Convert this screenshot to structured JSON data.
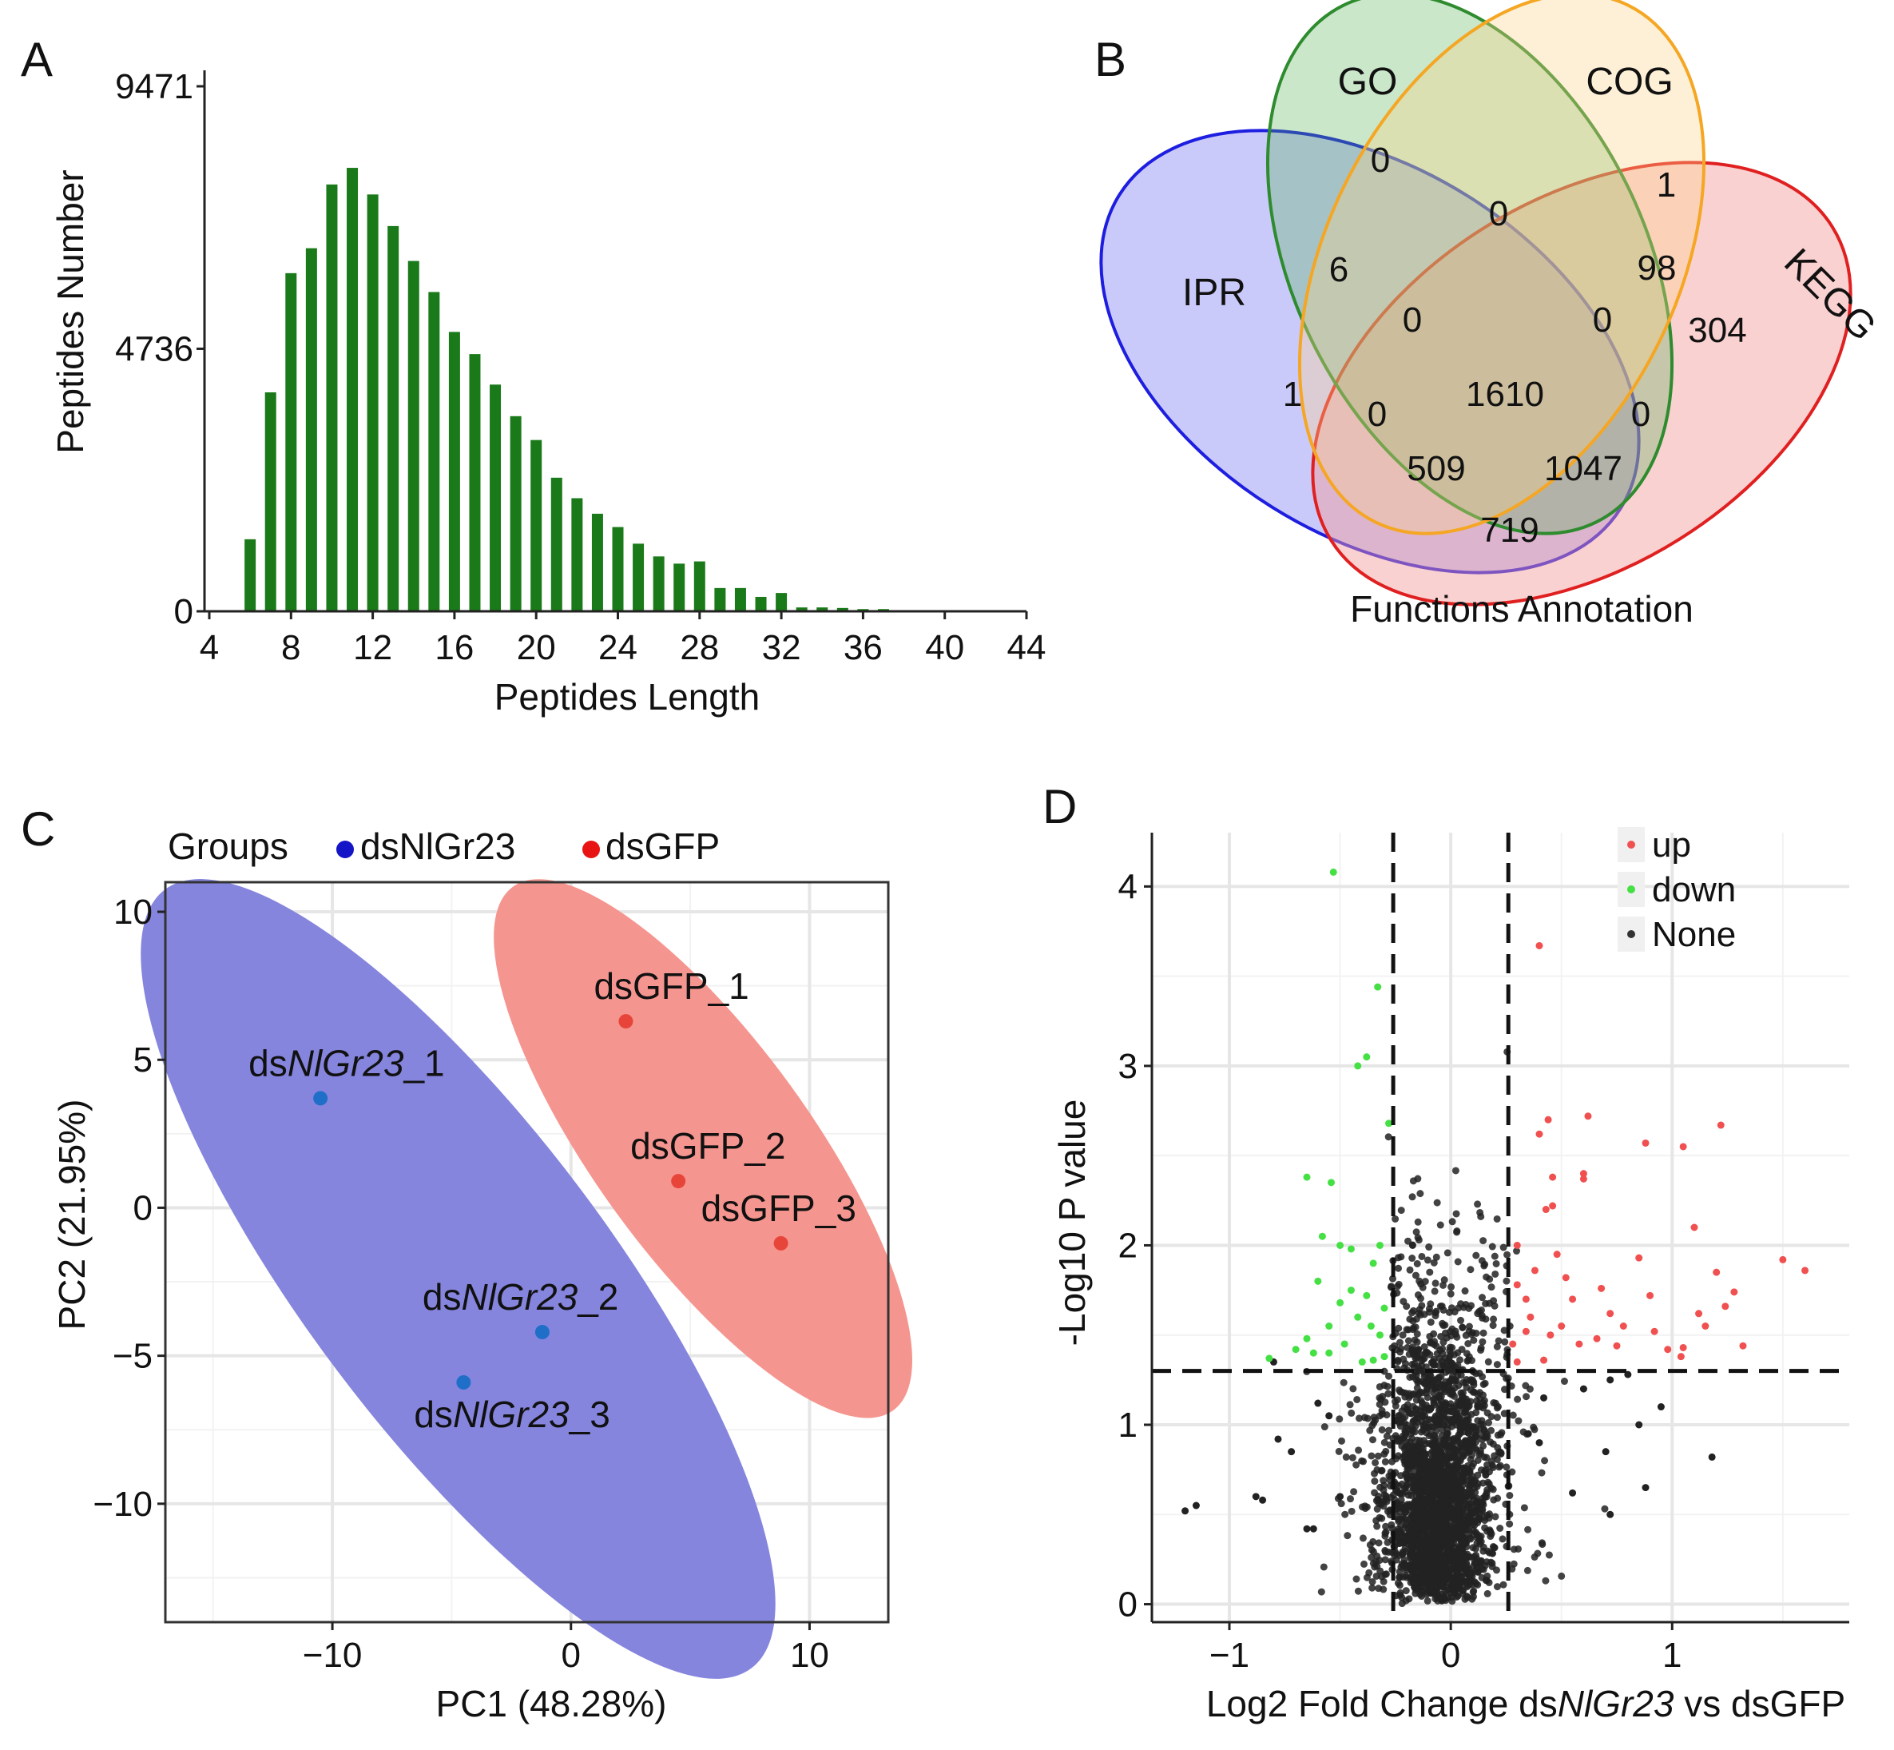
{
  "panels": {
    "A": {
      "label": "A"
    },
    "B": {
      "label": "B"
    },
    "C": {
      "label": "C"
    },
    "D": {
      "label": "D"
    }
  },
  "chart_data": [
    {
      "id": "A",
      "type": "bar",
      "xlabel": "Peptides Length",
      "ylabel": "Peptides Number",
      "color": "#1a7a1a",
      "x": [
        6,
        7,
        8,
        9,
        10,
        11,
        12,
        13,
        14,
        15,
        16,
        17,
        18,
        19,
        20,
        21,
        22,
        23,
        24,
        25,
        26,
        27,
        28,
        29,
        30,
        31,
        32,
        33,
        34,
        35,
        36,
        37
      ],
      "values": [
        1300,
        3950,
        6100,
        6550,
        7700,
        8000,
        7520,
        6950,
        6320,
        5760,
        5040,
        4640,
        4090,
        3520,
        3090,
        2410,
        2040,
        1760,
        1520,
        1220,
        990,
        860,
        900,
        420,
        420,
        260,
        330,
        70,
        70,
        60,
        40,
        40
      ],
      "xlim": [
        4,
        44
      ],
      "ylim": [
        0,
        9471
      ],
      "xticks": [
        "4",
        "8",
        "12",
        "16",
        "20",
        "24",
        "28",
        "32",
        "36",
        "40",
        "44"
      ],
      "yticks": [
        "0",
        "4736",
        "9471"
      ]
    },
    {
      "id": "B",
      "type": "venn",
      "title": "Functions Annotation",
      "sets": [
        {
          "name": "GO",
          "color": "#2e8b2e",
          "fill": "#4fb04f"
        },
        {
          "name": "COG",
          "color": "#f5a623",
          "fill": "#fbd38a"
        },
        {
          "name": "IPR",
          "color": "#1e1ee0",
          "fill": "#8a8af5"
        },
        {
          "name": "KEGG",
          "color": "#e02020",
          "fill": "#f59a9a"
        }
      ],
      "regions": [
        {
          "sets": "GO only",
          "value": "0"
        },
        {
          "sets": "GO&COG",
          "value": "0"
        },
        {
          "sets": "COG only",
          "value": "1"
        },
        {
          "sets": "GO&IPR",
          "value": "6"
        },
        {
          "sets": "COG&KEGG",
          "value": "98"
        },
        {
          "sets": "KEGG only",
          "value": "304"
        },
        {
          "sets": "GO&COG&IPR",
          "value": "0"
        },
        {
          "sets": "GO&COG&KEGG",
          "value": "0"
        },
        {
          "sets": "IPR only",
          "value": "1"
        },
        {
          "sets": "GO&IPR&KEGG",
          "value": "0"
        },
        {
          "sets": "ALL",
          "value": "1610"
        },
        {
          "sets": "GO&KEGG",
          "value": "0"
        },
        {
          "sets": "COG&IPR&KEGG",
          "value": "509"
        },
        {
          "sets": "COG&IPR&KEGG_b",
          "value": "1047"
        },
        {
          "sets": "IPR&KEGG",
          "value": "719"
        }
      ]
    },
    {
      "id": "C",
      "type": "scatter",
      "legend_title": "Groups",
      "xlabel": "PC1 (48.28%)",
      "ylabel": "PC2 (21.95%)",
      "xlim": [
        -17,
        13.3
      ],
      "ylim": [
        -14,
        11
      ],
      "xticks": [
        -10,
        0,
        10
      ],
      "xtick_labels": [
        "−10",
        "0",
        "10"
      ],
      "yticks": [
        10,
        5,
        0,
        -5,
        -10
      ],
      "ytick_labels": [
        "10",
        "5",
        "0",
        "−5",
        "−10"
      ],
      "groups": [
        {
          "name": "dsNlGr23",
          "color": "#1515c8",
          "point_color": "#1f6fc9",
          "ellipse_fill": "#8585de"
        },
        {
          "name": "dsGFP",
          "color": "#e81414",
          "point_color": "#e8453a",
          "ellipse_fill": "#f5958f"
        }
      ],
      "points": [
        {
          "group": 0,
          "x": -10.5,
          "y": 3.7,
          "label_pre": "ds",
          "label_it": "NlGr23",
          "label_post": "_1"
        },
        {
          "group": 0,
          "x": -1.2,
          "y": -4.2,
          "label_pre": "ds",
          "label_it": "NlGr23",
          "label_post": "_2"
        },
        {
          "group": 0,
          "x": -4.5,
          "y": -5.9,
          "label_pre": "ds",
          "label_it": "NlGr23",
          "label_post": "_3"
        },
        {
          "group": 1,
          "x": 2.3,
          "y": 6.3,
          "label_pre": "dsGFP_1",
          "label_it": "",
          "label_post": ""
        },
        {
          "group": 1,
          "x": 4.5,
          "y": 0.9,
          "label_pre": "dsGFP_2",
          "label_it": "",
          "label_post": ""
        },
        {
          "group": 1,
          "x": 8.8,
          "y": -1.2,
          "label_pre": "dsGFP_3",
          "label_it": "",
          "label_post": ""
        }
      ]
    },
    {
      "id": "D",
      "type": "scatter",
      "subtype": "volcano",
      "xlabel_pre": "Log2 Fold Change ds",
      "xlabel_it": "NlGr23",
      "xlabel_post": " vs dsGFP",
      "ylabel": "-Log10 P value",
      "xlim": [
        -1.35,
        1.8
      ],
      "ylim": [
        -0.1,
        4.3
      ],
      "xticks": [
        -1,
        0,
        1
      ],
      "xtick_labels": [
        "−1",
        "0",
        "1"
      ],
      "yticks": [
        0,
        1,
        2,
        3,
        4
      ],
      "ytick_labels": [
        "0",
        "1",
        "2",
        "3",
        "4"
      ],
      "thresholds": {
        "fc": [
          -0.26,
          0.26
        ],
        "p": 1.3
      },
      "legend": [
        {
          "name": "up",
          "color": "#f05050"
        },
        {
          "name": "down",
          "color": "#44e044"
        },
        {
          "name": "None",
          "color": "#333333"
        }
      ],
      "up_points": [
        [
          0.4,
          3.67
        ],
        [
          0.62,
          2.72
        ],
        [
          0.44,
          2.7
        ],
        [
          1.22,
          2.67
        ],
        [
          0.4,
          2.62
        ],
        [
          0.88,
          2.57
        ],
        [
          1.05,
          2.55
        ],
        [
          0.6,
          2.4
        ],
        [
          0.46,
          2.38
        ],
        [
          0.6,
          2.37
        ],
        [
          0.46,
          2.22
        ],
        [
          0.43,
          2.2
        ],
        [
          1.1,
          2.1
        ],
        [
          0.85,
          1.93
        ],
        [
          1.5,
          1.92
        ],
        [
          0.38,
          1.86
        ],
        [
          1.2,
          1.85
        ],
        [
          0.52,
          1.82
        ],
        [
          0.3,
          1.78
        ],
        [
          0.68,
          1.76
        ],
        [
          0.9,
          1.72
        ],
        [
          1.28,
          1.74
        ],
        [
          1.24,
          1.66
        ],
        [
          1.12,
          1.62
        ],
        [
          1.15,
          1.55
        ],
        [
          0.34,
          1.52
        ],
        [
          0.45,
          1.5
        ],
        [
          0.58,
          1.45
        ],
        [
          0.75,
          1.44
        ],
        [
          0.98,
          1.42
        ],
        [
          1.05,
          1.43
        ],
        [
          1.32,
          1.44
        ],
        [
          0.3,
          1.35
        ],
        [
          0.42,
          1.36
        ],
        [
          0.36,
          1.6
        ],
        [
          0.5,
          1.55
        ],
        [
          1.6,
          1.86
        ],
        [
          0.78,
          1.55
        ],
        [
          0.55,
          1.7
        ],
        [
          0.92,
          1.52
        ],
        [
          0.72,
          1.62
        ],
        [
          0.34,
          1.7
        ],
        [
          0.3,
          2.0
        ],
        [
          0.48,
          1.95
        ],
        [
          0.66,
          1.48
        ],
        [
          1.04,
          1.38
        ],
        [
          0.28,
          1.45
        ]
      ],
      "down_points": [
        [
          -0.53,
          4.08
        ],
        [
          -0.33,
          3.44
        ],
        [
          -0.38,
          3.05
        ],
        [
          -0.42,
          3.0
        ],
        [
          -0.28,
          2.68
        ],
        [
          -0.65,
          2.38
        ],
        [
          -0.54,
          2.35
        ],
        [
          -0.58,
          2.05
        ],
        [
          -0.5,
          2.0
        ],
        [
          -0.45,
          1.98
        ],
        [
          -0.32,
          2.0
        ],
        [
          -0.35,
          1.9
        ],
        [
          -0.45,
          1.75
        ],
        [
          -0.38,
          1.72
        ],
        [
          -0.5,
          1.68
        ],
        [
          -0.3,
          1.65
        ],
        [
          -0.42,
          1.6
        ],
        [
          -0.36,
          1.55
        ],
        [
          -0.32,
          1.5
        ],
        [
          -0.65,
          1.48
        ],
        [
          -0.48,
          1.45
        ],
        [
          -0.62,
          1.4
        ],
        [
          -0.7,
          1.42
        ],
        [
          -0.55,
          1.4
        ],
        [
          -0.82,
          1.37
        ],
        [
          -0.3,
          1.38
        ],
        [
          -0.35,
          1.36
        ],
        [
          -0.4,
          1.35
        ],
        [
          -0.6,
          1.8
        ],
        [
          -0.55,
          1.55
        ]
      ],
      "none_sample": "generated"
    }
  ]
}
